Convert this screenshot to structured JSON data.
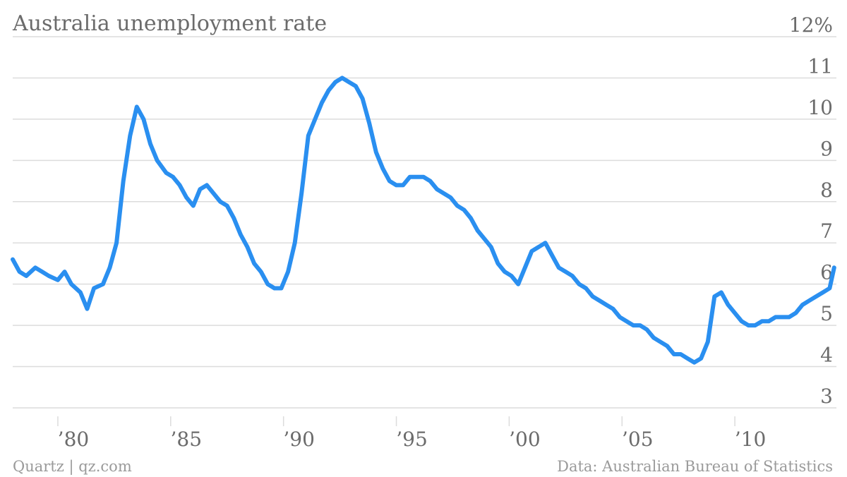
{
  "colors": {
    "series": "#2a8ff0",
    "grid": "#dcdcdc",
    "text": "#6b6b6b",
    "footer": "#9a9a9a"
  },
  "footer": {
    "source_left": "Quartz | qz.com",
    "source_right": "Data: Australian Bureau of Statistics"
  },
  "chart_data": {
    "type": "line",
    "title": "Australia unemployment rate",
    "xlabel": "",
    "ylabel": "",
    "xlim": [
      1978.0,
      2014.5
    ],
    "ylim": [
      3,
      12
    ],
    "grid": true,
    "legend": "none",
    "yticks": [
      {
        "value": 12,
        "label": "12%"
      },
      {
        "value": 11,
        "label": "11"
      },
      {
        "value": 10,
        "label": "10"
      },
      {
        "value": 9,
        "label": "9"
      },
      {
        "value": 8,
        "label": "8"
      },
      {
        "value": 7,
        "label": "7"
      },
      {
        "value": 6,
        "label": "6"
      },
      {
        "value": 5,
        "label": "5"
      },
      {
        "value": 4,
        "label": "4"
      },
      {
        "value": 3,
        "label": "3"
      }
    ],
    "xticks": [
      {
        "value": 1980,
        "label": "’80"
      },
      {
        "value": 1985,
        "label": "’85"
      },
      {
        "value": 1990,
        "label": "’90"
      },
      {
        "value": 1995,
        "label": "’95"
      },
      {
        "value": 2000,
        "label": "’00"
      },
      {
        "value": 2005,
        "label": "’05"
      },
      {
        "value": 2010,
        "label": "’10"
      }
    ],
    "series": [
      {
        "x": [
          1978.0,
          1978.3,
          1978.6,
          1979.0,
          1979.3,
          1979.6,
          1980.0,
          1980.3,
          1980.6,
          1981.0,
          1981.3,
          1981.6,
          1982.0,
          1982.3,
          1982.6,
          1982.9,
          1983.2,
          1983.5,
          1983.8,
          1984.1,
          1984.4,
          1984.8,
          1985.1,
          1985.4,
          1985.7,
          1986.0,
          1986.3,
          1986.6,
          1986.9,
          1987.2,
          1987.5,
          1987.8,
          1988.1,
          1988.4,
          1988.7,
          1989.0,
          1989.3,
          1989.6,
          1989.9,
          1990.2,
          1990.5,
          1990.8,
          1991.1,
          1991.4,
          1991.7,
          1992.0,
          1992.3,
          1992.6,
          1992.9,
          1993.2,
          1993.5,
          1993.8,
          1994.1,
          1994.4,
          1994.7,
          1995.0,
          1995.3,
          1995.6,
          1995.9,
          1996.2,
          1996.5,
          1996.8,
          1997.1,
          1997.4,
          1997.7,
          1998.0,
          1998.3,
          1998.6,
          1998.9,
          1999.2,
          1999.5,
          1999.8,
          2000.1,
          2000.4,
          2000.7,
          2001.0,
          2001.3,
          2001.6,
          2001.9,
          2002.2,
          2002.5,
          2002.8,
          2003.1,
          2003.4,
          2003.7,
          2004.0,
          2004.3,
          2004.6,
          2004.9,
          2005.2,
          2005.5,
          2005.8,
          2006.1,
          2006.4,
          2006.7,
          2007.0,
          2007.3,
          2007.6,
          2007.9,
          2008.2,
          2008.5,
          2008.8,
          2009.1,
          2009.4,
          2009.7,
          2010.0,
          2010.3,
          2010.6,
          2010.9,
          2011.2,
          2011.5,
          2011.8,
          2012.1,
          2012.4,
          2012.7,
          2013.0,
          2013.3,
          2013.6,
          2013.9,
          2014.2,
          2014.4
        ],
        "values": [
          6.6,
          6.3,
          6.2,
          6.4,
          6.3,
          6.2,
          6.1,
          6.3,
          6.0,
          5.8,
          5.4,
          5.9,
          6.0,
          6.4,
          7.0,
          8.5,
          9.6,
          10.3,
          10.0,
          9.4,
          9.0,
          8.7,
          8.6,
          8.4,
          8.1,
          7.9,
          8.3,
          8.4,
          8.2,
          8.0,
          7.9,
          7.6,
          7.2,
          6.9,
          6.5,
          6.3,
          6.0,
          5.9,
          5.9,
          6.3,
          7.0,
          8.2,
          9.6,
          10.0,
          10.4,
          10.7,
          10.9,
          11.0,
          10.9,
          10.8,
          10.5,
          9.9,
          9.2,
          8.8,
          8.5,
          8.4,
          8.4,
          8.6,
          8.6,
          8.6,
          8.5,
          8.3,
          8.2,
          8.1,
          7.9,
          7.8,
          7.6,
          7.3,
          7.1,
          6.9,
          6.5,
          6.3,
          6.2,
          6.0,
          6.4,
          6.8,
          6.9,
          7.0,
          6.7,
          6.4,
          6.3,
          6.2,
          6.0,
          5.9,
          5.7,
          5.6,
          5.5,
          5.4,
          5.2,
          5.1,
          5.0,
          5.0,
          4.9,
          4.7,
          4.6,
          4.5,
          4.3,
          4.3,
          4.2,
          4.1,
          4.2,
          4.6,
          5.7,
          5.8,
          5.5,
          5.3,
          5.1,
          5.0,
          5.0,
          5.1,
          5.1,
          5.2,
          5.2,
          5.2,
          5.3,
          5.5,
          5.6,
          5.7,
          5.8,
          5.9,
          6.4
        ]
      }
    ]
  }
}
